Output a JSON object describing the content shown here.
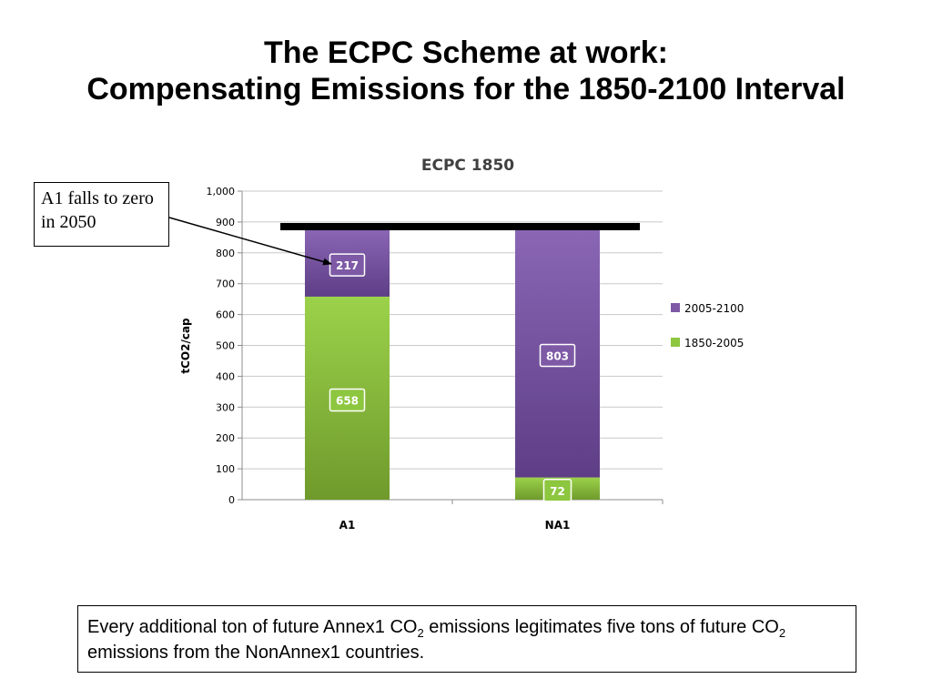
{
  "slide": {
    "title_line1": "The ECPC Scheme at work:",
    "title_line2": "Compensating Emissions for the 1850-2100 Interval",
    "callout": "A1 falls to zero in 2050",
    "note": {
      "part1": "Every additional ton of future Annex1 CO",
      "sub1": "2",
      "part2": " emissions legitimates five tons of future CO",
      "sub2": "2",
      "part3": " emissions from the NonAnnex1 countries."
    }
  },
  "chart_data": {
    "type": "bar",
    "stacked": true,
    "title": "ECPC 1850",
    "xlabel": "",
    "ylabel": "tCO2/cap",
    "categories": [
      "A1",
      "NA1"
    ],
    "series": [
      {
        "name": "1850-2005",
        "values": [
          658,
          72
        ],
        "color": "#8dc63f"
      },
      {
        "name": "2005-2100",
        "values": [
          217,
          803
        ],
        "color": "#7e5aa6"
      }
    ],
    "ylim": [
      0,
      1000
    ],
    "yticks": [
      0,
      100,
      200,
      300,
      400,
      500,
      600,
      700,
      800,
      900,
      1000
    ],
    "ytick_labels": [
      "0",
      "100",
      "200",
      "300",
      "400",
      "500",
      "600",
      "700",
      "800",
      "900",
      "1,000"
    ],
    "reference_line": 885,
    "grid": true,
    "legend_position": "right"
  }
}
